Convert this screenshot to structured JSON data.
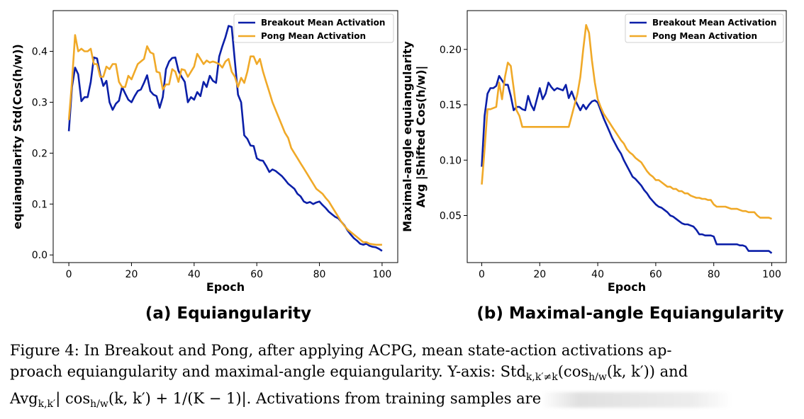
{
  "chart_data": [
    {
      "type": "line",
      "subtitle": "(a) Equiangularity",
      "xlabel": "Epoch",
      "ylabel": "equiangularity Std(Cos(h/w))",
      "xlim": [
        -5,
        105
      ],
      "ylim": [
        -0.015,
        0.48
      ],
      "xticks": [
        0,
        20,
        40,
        60,
        80,
        100
      ],
      "yticks": [
        0.0,
        0.1,
        0.2,
        0.3,
        0.4
      ],
      "ytick_labels": [
        "0.0",
        "0.1",
        "0.2",
        "0.3",
        "0.4"
      ],
      "legend_position": "top-right",
      "series": [
        {
          "name": "Breakout Mean Activation",
          "color": "#0b1fa8",
          "x": [
            0,
            1,
            2,
            3,
            4,
            5,
            6,
            7,
            8,
            9,
            10,
            11,
            12,
            13,
            14,
            15,
            16,
            17,
            18,
            19,
            20,
            21,
            22,
            23,
            24,
            25,
            26,
            27,
            28,
            29,
            30,
            31,
            32,
            33,
            34,
            35,
            36,
            37,
            38,
            39,
            40,
            41,
            42,
            43,
            44,
            45,
            46,
            47,
            48,
            49,
            50,
            51,
            52,
            53,
            54,
            55,
            56,
            57,
            58,
            59,
            60,
            61,
            62,
            63,
            64,
            65,
            66,
            67,
            68,
            69,
            70,
            71,
            72,
            73,
            74,
            75,
            76,
            77,
            78,
            79,
            80,
            81,
            82,
            83,
            84,
            85,
            86,
            87,
            88,
            89,
            90,
            91,
            92,
            93,
            94,
            95,
            96,
            97,
            98,
            99,
            100
          ],
          "values": [
            0.243,
            0.33,
            0.368,
            0.355,
            0.302,
            0.31,
            0.31,
            0.34,
            0.388,
            0.386,
            0.355,
            0.332,
            0.342,
            0.3,
            0.285,
            0.297,
            0.303,
            0.33,
            0.317,
            0.305,
            0.3,
            0.312,
            0.322,
            0.325,
            0.338,
            0.353,
            0.322,
            0.315,
            0.312,
            0.289,
            0.31,
            0.365,
            0.38,
            0.387,
            0.388,
            0.362,
            0.35,
            0.34,
            0.3,
            0.31,
            0.305,
            0.32,
            0.312,
            0.34,
            0.33,
            0.352,
            0.342,
            0.338,
            0.39,
            0.41,
            0.428,
            0.45,
            0.448,
            0.38,
            0.315,
            0.3,
            0.235,
            0.228,
            0.215,
            0.214,
            0.19,
            0.186,
            0.185,
            0.175,
            0.163,
            0.168,
            0.165,
            0.16,
            0.155,
            0.148,
            0.14,
            0.135,
            0.13,
            0.12,
            0.115,
            0.105,
            0.102,
            0.104,
            0.1,
            0.103,
            0.105,
            0.098,
            0.092,
            0.085,
            0.08,
            0.075,
            0.072,
            0.065,
            0.058,
            0.048,
            0.04,
            0.033,
            0.028,
            0.022,
            0.02,
            0.022,
            0.018,
            0.016,
            0.015,
            0.012,
            0.008
          ]
        },
        {
          "name": "Pong Mean Activation",
          "color": "#f0a928",
          "x": [
            0,
            1,
            2,
            3,
            4,
            5,
            6,
            7,
            8,
            9,
            10,
            11,
            12,
            13,
            14,
            15,
            16,
            17,
            18,
            19,
            20,
            21,
            22,
            23,
            24,
            25,
            26,
            27,
            28,
            29,
            30,
            31,
            32,
            33,
            34,
            35,
            36,
            37,
            38,
            39,
            40,
            41,
            42,
            43,
            44,
            45,
            46,
            47,
            48,
            49,
            50,
            51,
            52,
            53,
            54,
            55,
            56,
            57,
            58,
            59,
            60,
            61,
            62,
            63,
            64,
            65,
            66,
            67,
            68,
            69,
            70,
            71,
            72,
            73,
            74,
            75,
            76,
            77,
            78,
            79,
            80,
            81,
            82,
            83,
            84,
            85,
            86,
            87,
            88,
            89,
            90,
            91,
            92,
            93,
            94,
            95,
            96,
            97,
            98,
            99,
            100
          ],
          "values": [
            0.265,
            0.34,
            0.432,
            0.4,
            0.405,
            0.4,
            0.4,
            0.405,
            0.375,
            0.375,
            0.35,
            0.35,
            0.37,
            0.365,
            0.375,
            0.375,
            0.34,
            0.33,
            0.33,
            0.352,
            0.345,
            0.36,
            0.375,
            0.38,
            0.385,
            0.41,
            0.398,
            0.395,
            0.36,
            0.358,
            0.325,
            0.335,
            0.335,
            0.365,
            0.36,
            0.34,
            0.365,
            0.363,
            0.35,
            0.36,
            0.37,
            0.395,
            0.385,
            0.375,
            0.382,
            0.378,
            0.38,
            0.378,
            0.375,
            0.368,
            0.38,
            0.385,
            0.36,
            0.35,
            0.33,
            0.348,
            0.338,
            0.36,
            0.39,
            0.39,
            0.375,
            0.385,
            0.36,
            0.34,
            0.32,
            0.3,
            0.285,
            0.27,
            0.255,
            0.24,
            0.23,
            0.21,
            0.2,
            0.19,
            0.18,
            0.17,
            0.16,
            0.15,
            0.14,
            0.13,
            0.125,
            0.12,
            0.112,
            0.105,
            0.095,
            0.085,
            0.075,
            0.065,
            0.057,
            0.05,
            0.045,
            0.04,
            0.035,
            0.03,
            0.025,
            0.025,
            0.022,
            0.021,
            0.02,
            0.02,
            0.02
          ]
        }
      ]
    },
    {
      "type": "line",
      "subtitle": "(b) Maximal-angle Equiangularity",
      "xlabel": "Epoch",
      "ylabel": "Maximal-angle equiangularity Avg |Shifted Cos(h/w)|",
      "ylabel_lines": [
        "Maximal-angle equiangularity",
        "Avg |Shifted Cos(h/w)|"
      ],
      "xlim": [
        -5,
        105
      ],
      "ylim": [
        0.0075,
        0.235
      ],
      "xticks": [
        0,
        20,
        40,
        60,
        80,
        100
      ],
      "yticks": [
        0.05,
        0.1,
        0.15,
        0.2
      ],
      "ytick_labels": [
        "0.05",
        "0.10",
        "0.15",
        "0.20"
      ],
      "legend_position": "top-right",
      "series": [
        {
          "name": "Breakout Mean Activation",
          "color": "#0b1fa8",
          "x": [
            0,
            1,
            2,
            3,
            4,
            5,
            6,
            7,
            8,
            9,
            10,
            11,
            12,
            13,
            14,
            15,
            16,
            17,
            18,
            19,
            20,
            21,
            22,
            23,
            24,
            25,
            26,
            27,
            28,
            29,
            30,
            31,
            32,
            33,
            34,
            35,
            36,
            37,
            38,
            39,
            40,
            41,
            42,
            43,
            44,
            45,
            46,
            47,
            48,
            49,
            50,
            51,
            52,
            53,
            54,
            55,
            56,
            57,
            58,
            59,
            60,
            61,
            62,
            63,
            64,
            65,
            66,
            67,
            68,
            69,
            70,
            71,
            72,
            73,
            74,
            75,
            76,
            77,
            78,
            79,
            80,
            81,
            82,
            83,
            84,
            85,
            86,
            87,
            88,
            89,
            90,
            91,
            92,
            93,
            94,
            95,
            96,
            97,
            98,
            99,
            100
          ],
          "values": [
            0.094,
            0.14,
            0.16,
            0.165,
            0.165,
            0.167,
            0.176,
            0.172,
            0.168,
            0.168,
            0.158,
            0.145,
            0.148,
            0.148,
            0.146,
            0.145,
            0.158,
            0.15,
            0.145,
            0.155,
            0.165,
            0.155,
            0.16,
            0.17,
            0.166,
            0.163,
            0.165,
            0.164,
            0.163,
            0.168,
            0.156,
            0.162,
            0.155,
            0.15,
            0.145,
            0.15,
            0.146,
            0.15,
            0.153,
            0.154,
            0.152,
            0.145,
            0.138,
            0.132,
            0.126,
            0.12,
            0.115,
            0.11,
            0.106,
            0.1,
            0.095,
            0.09,
            0.085,
            0.083,
            0.08,
            0.077,
            0.073,
            0.07,
            0.066,
            0.063,
            0.06,
            0.058,
            0.057,
            0.055,
            0.053,
            0.05,
            0.049,
            0.047,
            0.045,
            0.043,
            0.042,
            0.042,
            0.041,
            0.04,
            0.037,
            0.033,
            0.033,
            0.032,
            0.032,
            0.032,
            0.031,
            0.024,
            0.024,
            0.024,
            0.024,
            0.024,
            0.024,
            0.024,
            0.024,
            0.023,
            0.023,
            0.022,
            0.018,
            0.018,
            0.018,
            0.018,
            0.018,
            0.018,
            0.018,
            0.018,
            0.016
          ]
        },
        {
          "name": "Pong Mean Activation",
          "color": "#f0a928",
          "x": [
            0,
            1,
            2,
            3,
            4,
            5,
            6,
            7,
            8,
            9,
            10,
            11,
            12,
            13,
            14,
            15,
            16,
            17,
            18,
            19,
            20,
            21,
            22,
            23,
            24,
            25,
            26,
            27,
            28,
            29,
            30,
            31,
            32,
            33,
            34,
            35,
            36,
            37,
            38,
            39,
            40,
            41,
            42,
            43,
            44,
            45,
            46,
            47,
            48,
            49,
            50,
            51,
            52,
            53,
            54,
            55,
            56,
            57,
            58,
            59,
            60,
            61,
            62,
            63,
            64,
            65,
            66,
            67,
            68,
            69,
            70,
            71,
            72,
            73,
            74,
            75,
            76,
            77,
            78,
            79,
            80,
            81,
            82,
            83,
            84,
            85,
            86,
            87,
            88,
            89,
            90,
            91,
            92,
            93,
            94,
            95,
            96,
            97,
            98,
            99,
            100
          ],
          "values": [
            0.078,
            0.11,
            0.146,
            0.146,
            0.147,
            0.148,
            0.17,
            0.155,
            0.175,
            0.188,
            0.185,
            0.165,
            0.145,
            0.14,
            0.13,
            0.13,
            0.13,
            0.13,
            0.13,
            0.13,
            0.13,
            0.13,
            0.13,
            0.13,
            0.13,
            0.13,
            0.13,
            0.13,
            0.13,
            0.13,
            0.13,
            0.14,
            0.15,
            0.16,
            0.175,
            0.2,
            0.222,
            0.215,
            0.19,
            0.17,
            0.155,
            0.148,
            0.142,
            0.138,
            0.134,
            0.13,
            0.126,
            0.122,
            0.118,
            0.115,
            0.11,
            0.107,
            0.105,
            0.102,
            0.1,
            0.098,
            0.094,
            0.09,
            0.087,
            0.085,
            0.082,
            0.082,
            0.08,
            0.078,
            0.076,
            0.076,
            0.074,
            0.074,
            0.072,
            0.072,
            0.07,
            0.07,
            0.068,
            0.067,
            0.066,
            0.066,
            0.065,
            0.065,
            0.064,
            0.064,
            0.06,
            0.058,
            0.058,
            0.058,
            0.058,
            0.057,
            0.056,
            0.056,
            0.056,
            0.055,
            0.054,
            0.054,
            0.053,
            0.053,
            0.053,
            0.05,
            0.048,
            0.048,
            0.048,
            0.048,
            0.047
          ]
        }
      ]
    }
  ],
  "caption": {
    "line1": "Figure 4:  In Breakout and Pong, after applying ACPG, mean state-action activations ap-",
    "line2a": "proach equiangularity and maximal-angle equiangularity.  Y-axis: Std",
    "line2_sub": "k,k′≠k",
    "line2b": "(cos",
    "line2_sub2": "h/w",
    "line2c": "(k, k′)) and",
    "line3a": "Avg",
    "line3_sub": "k,k′",
    "line3b": "| cos",
    "line3_sub2": "h/w",
    "line3c": "(k, k′) + 1/(K − 1)|. Activations from training samples are"
  }
}
